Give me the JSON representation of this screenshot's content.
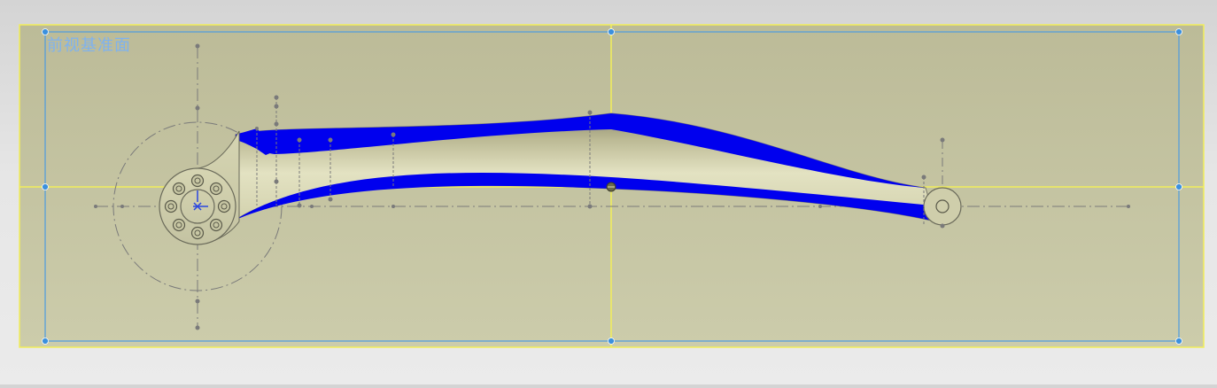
{
  "sketch_plane": {
    "label": "前视基准面"
  },
  "colors": {
    "plane_fill": "#c4c3a0",
    "plane_border": "#f2ee5a",
    "plane_inner_border": "#4d9bdf",
    "handle": "#3b90de",
    "section": "#0000ee",
    "body_light": "#e0dfbc",
    "body_shadow": "#8c8a6a",
    "sketch_line": "#7a7a7a",
    "origin": "#2a46e0"
  },
  "icons": {
    "origin": "origin-icon",
    "plane_handle": "plane-handle-icon"
  }
}
